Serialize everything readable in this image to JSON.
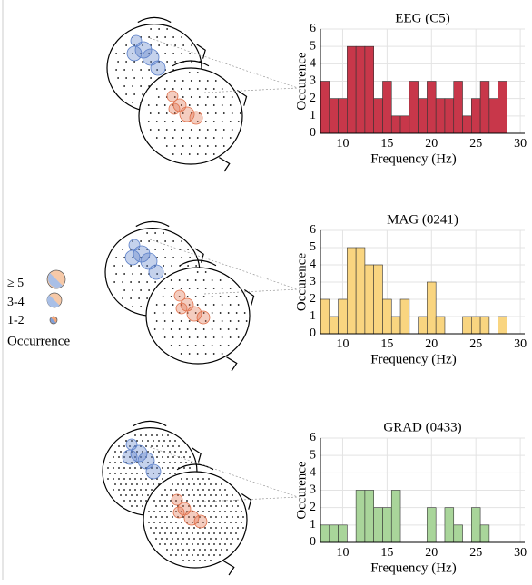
{
  "chart_data": [
    {
      "type": "histogram",
      "title": "EEG (C5)",
      "x_label": "Frequency (Hz)",
      "y_label": "Occurence",
      "color": "#c8374a",
      "bins": [
        7.5,
        8.5,
        9.5,
        10.5,
        11.5,
        12.5,
        13.5,
        14.5,
        15.5,
        16.5,
        17.5,
        18.5,
        19.5,
        20.5,
        21.5,
        22.5,
        23.5,
        24.5,
        25.5,
        26.5,
        27.5,
        28.5
      ],
      "values": [
        3,
        2,
        2,
        5,
        5,
        5,
        2,
        3,
        1,
        1,
        3,
        2,
        3,
        2,
        2,
        3,
        1,
        2,
        3,
        2,
        3
      ],
      "xlim": [
        7.5,
        30.5
      ],
      "xticks": [
        10,
        15,
        20,
        25,
        30
      ],
      "ylim": [
        0,
        6
      ],
      "yticks": [
        0,
        1,
        2,
        3,
        4,
        5,
        6
      ],
      "grid": true
    },
    {
      "type": "histogram",
      "title": "MAG (0241)",
      "x_label": "Frequency (Hz)",
      "y_label": "Occurence",
      "color": "#f9d580",
      "bins": [
        7.5,
        8.5,
        9.5,
        10.5,
        11.5,
        12.5,
        13.5,
        14.5,
        15.5,
        16.5,
        17.5,
        18.5,
        19.5,
        20.5,
        21.5,
        22.5,
        23.5,
        24.5,
        25.5,
        26.5,
        27.5,
        28.5
      ],
      "values": [
        2,
        1,
        2,
        5,
        5,
        4,
        4,
        2,
        1,
        2,
        0,
        1,
        3,
        1,
        0,
        0,
        1,
        1,
        1,
        0,
        1
      ],
      "xlim": [
        7.5,
        30.5
      ],
      "xticks": [
        10,
        15,
        20,
        25,
        30
      ],
      "ylim": [
        0,
        6
      ],
      "yticks": [
        0,
        1,
        2,
        3,
        4,
        5,
        6
      ],
      "grid": true
    },
    {
      "type": "histogram",
      "title": "GRAD (0433)",
      "x_label": "Frequency (Hz)",
      "y_label": "Occurence",
      "color": "#a9d59a",
      "bins": [
        7.5,
        8.5,
        9.5,
        10.5,
        11.5,
        12.5,
        13.5,
        14.5,
        15.5,
        16.5,
        17.5,
        18.5,
        19.5,
        20.5,
        21.5,
        22.5,
        23.5,
        24.5,
        25.5,
        26.5
      ],
      "values": [
        1,
        1,
        1,
        0,
        3,
        3,
        2,
        2,
        3,
        0,
        0,
        0,
        2,
        0,
        2,
        1,
        0,
        2,
        1
      ],
      "xlim": [
        7.5,
        30.5
      ],
      "xticks": [
        10,
        15,
        20,
        25,
        30
      ],
      "ylim": [
        0,
        6
      ],
      "yticks": [
        0,
        1,
        2,
        3,
        4,
        5,
        6
      ],
      "grid": true
    }
  ],
  "legend": {
    "items": [
      "≥ 5",
      "3-4",
      "1-2"
    ],
    "title": "Occurrence"
  }
}
